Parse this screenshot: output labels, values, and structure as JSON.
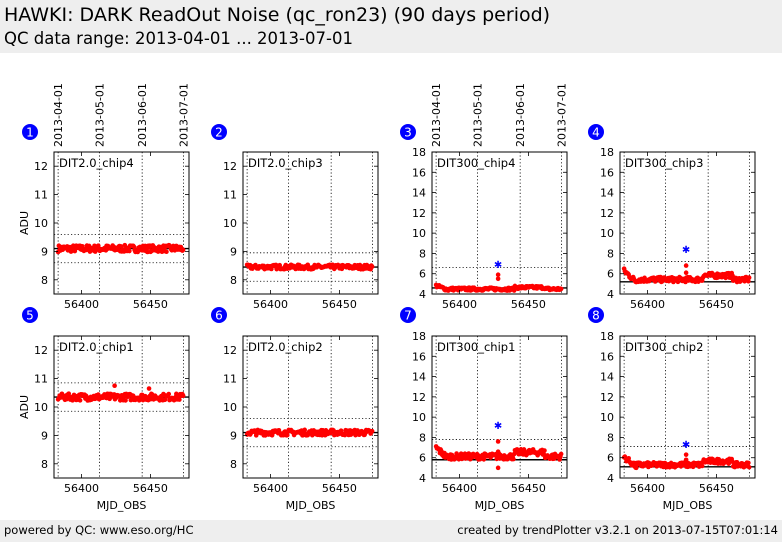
{
  "header": {
    "title": "HAWKI: DARK ReadOut Noise (qc_ron23) (90 days period)",
    "subtitle": "QC data range: 2013-04-01 ... 2013-07-01"
  },
  "footer": {
    "left": "powered by QC: www.eso.org/HC",
    "right": "created by trendPlotter v3.2.1 on 2013-07-15T07:01:14"
  },
  "colors": {
    "data": "#ff0000",
    "outlier": "#0000ff",
    "badge": "#0000ff",
    "header_bg": "#eeeeee"
  },
  "chart_data": {
    "type": "scatter",
    "x_domain": [
      56380,
      56478
    ],
    "x_ticks": [
      56400,
      56450
    ],
    "xlabel": "MJD_OBS",
    "ylabel": "ADU",
    "date_axis": {
      "labels": [
        "2013-04-01",
        "2013-05-01",
        "2013-06-01",
        "2013-07-01"
      ],
      "positions": [
        56383,
        56413,
        56444,
        56474
      ]
    },
    "panels": [
      {
        "id": "1",
        "label": "DIT2.0_chip4",
        "ylim": [
          7.5,
          12.5
        ],
        "yticks": [
          8,
          9,
          10,
          11,
          12
        ],
        "ref": 9.1,
        "band": [
          8.6,
          9.6
        ],
        "base": 9.1,
        "spread": 0.12,
        "ylabel": true,
        "xlabel": false,
        "dates": true
      },
      {
        "id": "2",
        "label": "DIT2.0_chip3",
        "ylim": [
          7.5,
          12.5
        ],
        "yticks": [
          8,
          9,
          10,
          11,
          12
        ],
        "ref": 8.45,
        "band": [
          7.95,
          8.95
        ],
        "base": 8.45,
        "spread": 0.08,
        "ylabel": false,
        "xlabel": false,
        "dates": false
      },
      {
        "id": "3",
        "label": "DIT300_chip4",
        "ylim": [
          4,
          18
        ],
        "yticks": [
          4,
          6,
          8,
          10,
          12,
          14,
          16,
          18
        ],
        "ref": 4.6,
        "band": [
          4.0,
          6.6
        ],
        "base": 4.4,
        "spread": 0.15,
        "slope": 0.35,
        "outlier": [
          56428,
          6.9
        ],
        "spikes": [
          [
            56428,
            5.5
          ],
          [
            56428,
            5.9
          ]
        ],
        "ylabel": false,
        "xlabel": false,
        "dates": true
      },
      {
        "id": "4",
        "label": "DIT300_chip3",
        "ylim": [
          4,
          18
        ],
        "yticks": [
          4,
          6,
          8,
          10,
          12,
          14,
          16,
          18
        ],
        "ref": 5.2,
        "band": [
          4.0,
          7.2
        ],
        "base": 5.2,
        "spread": 0.25,
        "slope": 0.9,
        "outlier": [
          56428,
          8.4
        ],
        "spikes": [
          [
            56428,
            6.1
          ],
          [
            56428,
            6.8
          ]
        ],
        "ylabel": false,
        "xlabel": false,
        "dates": false
      },
      {
        "id": "5",
        "label": "DIT2.0_chip1",
        "ylim": [
          7.5,
          12.5
        ],
        "yticks": [
          8,
          9,
          10,
          11,
          12
        ],
        "ref": 10.35,
        "band": [
          9.85,
          10.85
        ],
        "base": 10.35,
        "spread": 0.12,
        "extras": [
          [
            56424,
            10.75
          ],
          [
            56449,
            10.65
          ]
        ],
        "ylabel": true,
        "xlabel": true,
        "dates": false
      },
      {
        "id": "6",
        "label": "DIT2.0_chip2",
        "ylim": [
          7.5,
          12.5
        ],
        "yticks": [
          8,
          9,
          10,
          11,
          12
        ],
        "ref": 9.1,
        "band": [
          8.6,
          9.6
        ],
        "base": 9.1,
        "spread": 0.1,
        "ylabel": false,
        "xlabel": true,
        "dates": false
      },
      {
        "id": "7",
        "label": "DIT300_chip1",
        "ylim": [
          4,
          18
        ],
        "yticks": [
          4,
          6,
          8,
          10,
          12,
          14,
          16,
          18
        ],
        "ref": 5.8,
        "band": [
          4.0,
          7.8
        ],
        "base": 5.9,
        "spread": 0.3,
        "slope": 0.9,
        "outlier": [
          56428,
          9.2
        ],
        "spikes": [
          [
            56428,
            6.6
          ],
          [
            56428,
            7.6
          ],
          [
            56428,
            5.0
          ]
        ],
        "ylabel": false,
        "xlabel": true,
        "dates": false
      },
      {
        "id": "8",
        "label": "DIT300_chip2",
        "ylim": [
          4,
          18
        ],
        "yticks": [
          4,
          6,
          8,
          10,
          12,
          14,
          16,
          18
        ],
        "ref": 5.1,
        "band": [
          4.0,
          7.1
        ],
        "base": 5.1,
        "spread": 0.25,
        "slope": 0.8,
        "outlier": [
          56428,
          7.3
        ],
        "spikes": [
          [
            56428,
            5.8
          ],
          [
            56428,
            6.3
          ]
        ],
        "ylabel": false,
        "xlabel": true,
        "dates": false
      }
    ]
  }
}
